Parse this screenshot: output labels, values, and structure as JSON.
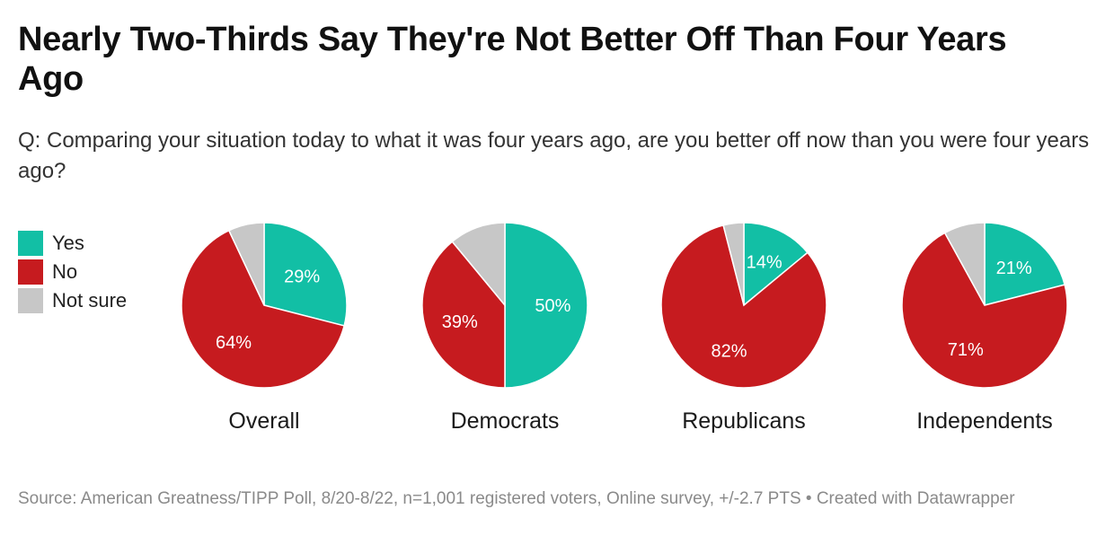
{
  "title": "Nearly Two-Thirds Say They're Not Better Off Than Four Years Ago",
  "subtitle": "Q: Comparing your situation today to what it was four years ago, are you better off now than you were four years ago?",
  "legend": [
    {
      "label": "Yes",
      "color": "#12bfa5"
    },
    {
      "label": "No",
      "color": "#c61b1f"
    },
    {
      "label": "Not sure",
      "color": "#c7c7c7"
    }
  ],
  "chart_data": {
    "type": "pie",
    "categories": [
      "Yes",
      "No",
      "Not sure"
    ],
    "colors": [
      "#12bfa5",
      "#c61b1f",
      "#c7c7c7"
    ],
    "series": [
      {
        "name": "Overall",
        "values": [
          29,
          64,
          7
        ],
        "labels": [
          "29%",
          "64%",
          ""
        ]
      },
      {
        "name": "Democrats",
        "values": [
          50,
          39,
          11
        ],
        "labels": [
          "50%",
          "39%",
          ""
        ]
      },
      {
        "name": "Republicans",
        "values": [
          14,
          82,
          4
        ],
        "labels": [
          "14%",
          "82%",
          ""
        ]
      },
      {
        "name": "Independents",
        "values": [
          21,
          71,
          8
        ],
        "labels": [
          "21%",
          "71%",
          ""
        ]
      }
    ]
  },
  "footer": "Source: American Greatness/TIPP Poll, 8/20-8/22, n=1,001 registered voters, Online survey, +/-2.7 PTS • Created with Datawrapper"
}
